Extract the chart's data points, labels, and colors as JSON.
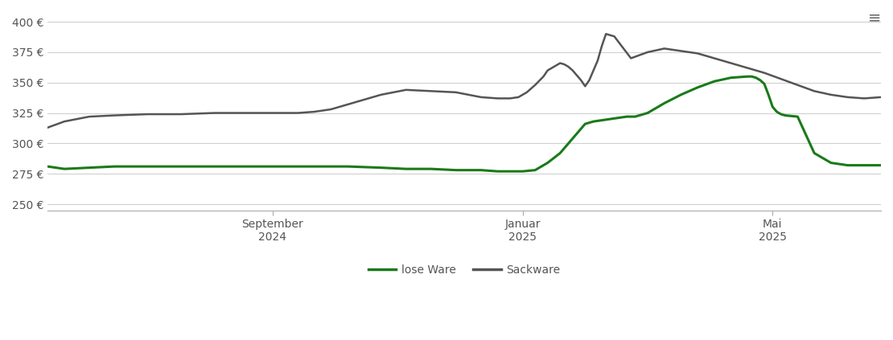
{
  "xlabel_ticks": [
    "September\n2024",
    "Januar\n2025",
    "Mai\n2025"
  ],
  "xlabel_tick_positions": [
    0.27,
    0.57,
    0.87
  ],
  "ylabel_ticks": [
    250,
    275,
    300,
    325,
    350,
    375,
    400
  ],
  "ylim": [
    245,
    408
  ],
  "legend_labels": [
    "lose Ware",
    "Sackware"
  ],
  "background_color": "#ffffff",
  "grid_color": "#d0d0d0",
  "lose_ware_color": "#1a7a1a",
  "sackware_color": "#555555",
  "lose_ware": {
    "x": [
      0.0,
      0.02,
      0.05,
      0.08,
      0.12,
      0.16,
      0.2,
      0.24,
      0.28,
      0.32,
      0.36,
      0.4,
      0.43,
      0.46,
      0.49,
      0.52,
      0.54,
      0.555,
      0.57,
      0.585,
      0.6,
      0.615,
      0.625,
      0.635,
      0.645,
      0.655,
      0.665,
      0.675,
      0.685,
      0.695,
      0.705,
      0.72,
      0.74,
      0.76,
      0.78,
      0.8,
      0.82,
      0.84,
      0.845,
      0.85,
      0.855,
      0.86,
      0.865,
      0.87,
      0.875,
      0.88,
      0.885,
      0.9,
      0.92,
      0.94,
      0.96,
      0.98,
      1.0
    ],
    "y": [
      281,
      279,
      280,
      281,
      281,
      281,
      281,
      281,
      281,
      281,
      281,
      280,
      279,
      279,
      278,
      278,
      277,
      277,
      277,
      278,
      284,
      292,
      300,
      308,
      316,
      318,
      319,
      320,
      321,
      322,
      322,
      325,
      333,
      340,
      346,
      351,
      354,
      355,
      355,
      354,
      352,
      349,
      340,
      330,
      326,
      324,
      323,
      322,
      292,
      284,
      282,
      282,
      282
    ]
  },
  "sackware": {
    "x": [
      0.0,
      0.02,
      0.05,
      0.08,
      0.12,
      0.16,
      0.2,
      0.24,
      0.27,
      0.3,
      0.32,
      0.34,
      0.36,
      0.38,
      0.4,
      0.43,
      0.46,
      0.49,
      0.52,
      0.54,
      0.555,
      0.565,
      0.575,
      0.585,
      0.595,
      0.6,
      0.605,
      0.61,
      0.615,
      0.62,
      0.625,
      0.63,
      0.635,
      0.64,
      0.645,
      0.65,
      0.655,
      0.66,
      0.665,
      0.67,
      0.68,
      0.7,
      0.72,
      0.74,
      0.76,
      0.78,
      0.8,
      0.82,
      0.84,
      0.86,
      0.88,
      0.9,
      0.92,
      0.94,
      0.96,
      0.98,
      1.0
    ],
    "y": [
      313,
      318,
      322,
      323,
      324,
      324,
      325,
      325,
      325,
      325,
      326,
      328,
      332,
      336,
      340,
      344,
      343,
      342,
      338,
      337,
      337,
      338,
      342,
      348,
      355,
      360,
      362,
      364,
      366,
      365,
      363,
      360,
      356,
      352,
      347,
      352,
      360,
      368,
      380,
      390,
      388,
      370,
      375,
      378,
      376,
      374,
      370,
      366,
      362,
      358,
      353,
      348,
      343,
      340,
      338,
      337,
      338
    ]
  }
}
